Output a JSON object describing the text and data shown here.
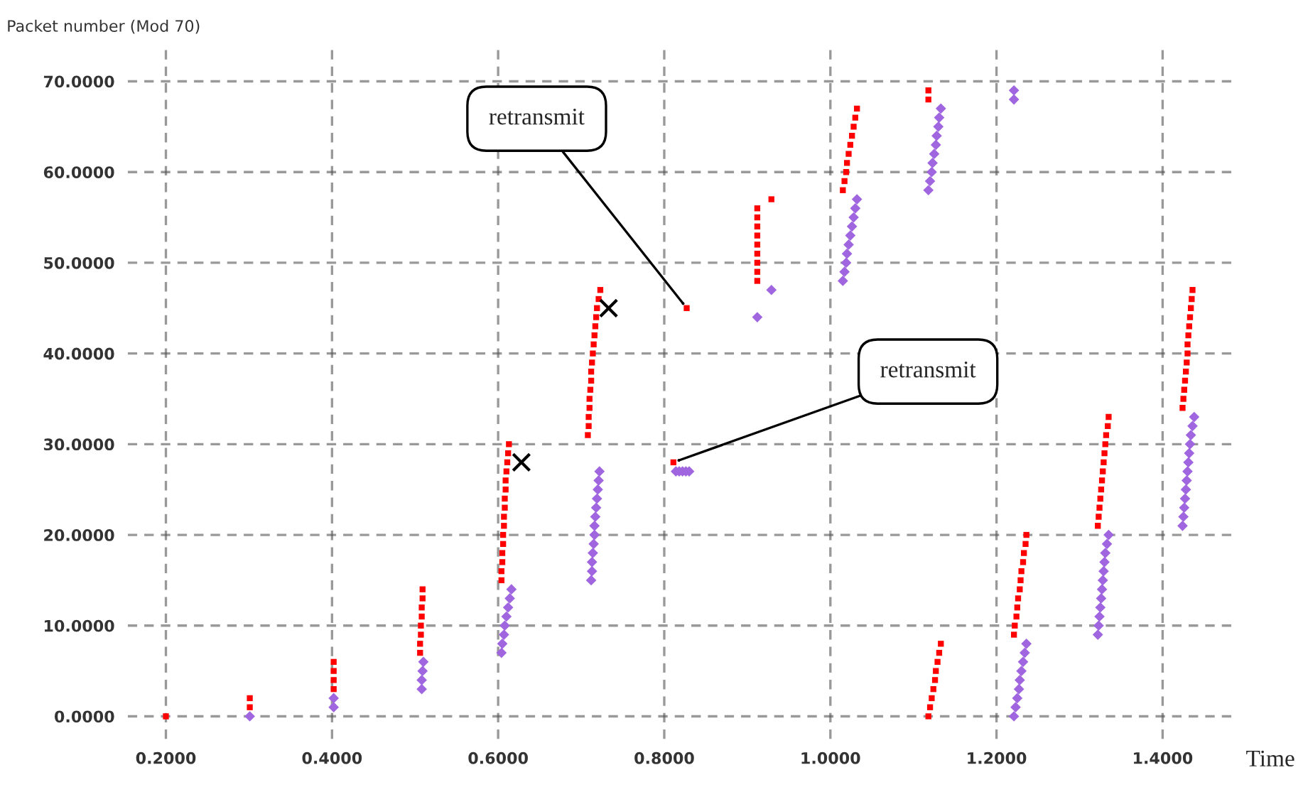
{
  "chart_data": {
    "type": "scatter",
    "xlabel": "Time",
    "ylabel": "Packet number (Mod 70)",
    "xlim": [
      0.154,
      1.489
    ],
    "ylim": [
      -2.5,
      73.5
    ],
    "xticks": [
      {
        "value": 0.2,
        "label": "0.2000"
      },
      {
        "value": 0.4,
        "label": "0.4000"
      },
      {
        "value": 0.6,
        "label": "0.6000"
      },
      {
        "value": 0.8,
        "label": "0.8000"
      },
      {
        "value": 1.0,
        "label": "1.0000"
      },
      {
        "value": 1.2,
        "label": "1.2000"
      },
      {
        "value": 1.4,
        "label": "1.4000"
      }
    ],
    "yticks": [
      {
        "value": 0,
        "label": "0.0000"
      },
      {
        "value": 10,
        "label": "10.0000"
      },
      {
        "value": 20,
        "label": "20.0000"
      },
      {
        "value": 30,
        "label": "30.0000"
      },
      {
        "value": 40,
        "label": "40.0000"
      },
      {
        "value": 50,
        "label": "50.0000"
      },
      {
        "value": 60,
        "label": "60.0000"
      },
      {
        "value": 70,
        "label": "70.0000"
      }
    ],
    "grid": true,
    "series": [
      {
        "color": "#ff0000",
        "marker": "square",
        "x": [
          0.2,
          0.301,
          0.301,
          0.402,
          0.402,
          0.402,
          0.402,
          0.506,
          0.506,
          0.507,
          0.507,
          0.508,
          0.508,
          0.509,
          0.509,
          0.604,
          0.604,
          0.605,
          0.605,
          0.606,
          0.606,
          0.607,
          0.607,
          0.608,
          0.608,
          0.609,
          0.609,
          0.61,
          0.611,
          0.612,
          0.613,
          0.708,
          0.709,
          0.709,
          0.71,
          0.71,
          0.711,
          0.712,
          0.712,
          0.713,
          0.714,
          0.715,
          0.716,
          0.717,
          0.718,
          0.719,
          0.721,
          0.723,
          0.811,
          0.827,
          0.912,
          0.912,
          0.912,
          0.912,
          0.912,
          0.912,
          0.912,
          0.912,
          0.912,
          0.929,
          1.015,
          1.017,
          1.019,
          1.02,
          1.022,
          1.024,
          1.026,
          1.028,
          1.03,
          1.032,
          1.118,
          1.118,
          1.118,
          1.12,
          1.122,
          1.124,
          1.126,
          1.127,
          1.129,
          1.131,
          1.133,
          1.221,
          1.222,
          1.224,
          1.225,
          1.226,
          1.228,
          1.229,
          1.23,
          1.232,
          1.233,
          1.235,
          1.236,
          1.322,
          1.323,
          1.324,
          1.325,
          1.326,
          1.327,
          1.328,
          1.329,
          1.33,
          1.331,
          1.332,
          1.334,
          1.335,
          1.424,
          1.425,
          1.426,
          1.427,
          1.428,
          1.429,
          1.43,
          1.43,
          1.431,
          1.432,
          1.433,
          1.434,
          1.435,
          1.436
        ],
        "values": [
          0,
          1,
          2,
          3,
          4,
          5,
          6,
          7,
          8,
          9,
          10,
          11,
          12,
          13,
          14,
          15,
          16,
          17,
          18,
          19,
          20,
          21,
          22,
          23,
          24,
          25,
          26,
          27,
          28,
          29,
          30,
          31,
          32,
          33,
          34,
          35,
          36,
          37,
          38,
          39,
          40,
          41,
          42,
          43,
          44,
          45,
          46,
          47,
          28,
          45,
          48,
          49,
          50,
          51,
          52,
          53,
          54,
          55,
          56,
          57,
          58,
          59,
          60,
          61,
          62,
          63,
          64,
          65,
          66,
          67,
          68,
          69,
          0,
          1,
          2,
          3,
          4,
          5,
          6,
          7,
          8,
          9,
          10,
          11,
          12,
          13,
          14,
          15,
          16,
          17,
          18,
          19,
          20,
          21,
          22,
          23,
          24,
          25,
          26,
          27,
          28,
          29,
          30,
          31,
          32,
          33,
          34,
          35,
          36,
          37,
          38,
          39,
          40,
          41,
          42,
          43,
          44,
          45,
          46,
          47
        ]
      },
      {
        "color": "#a066e0",
        "marker": "diamond",
        "x": [
          0.301,
          0.402,
          0.402,
          0.508,
          0.508,
          0.509,
          0.51,
          0.604,
          0.605,
          0.607,
          0.608,
          0.61,
          0.612,
          0.614,
          0.616,
          0.712,
          0.713,
          0.713,
          0.714,
          0.715,
          0.716,
          0.716,
          0.717,
          0.718,
          0.719,
          0.72,
          0.721,
          0.722,
          0.814,
          0.818,
          0.822,
          0.826,
          0.83,
          0.912,
          0.929,
          1.015,
          1.017,
          1.019,
          1.02,
          1.022,
          1.024,
          1.026,
          1.028,
          1.03,
          1.032,
          1.118,
          1.12,
          1.122,
          1.123,
          1.125,
          1.127,
          1.128,
          1.13,
          1.131,
          1.133,
          1.221,
          1.221,
          1.221,
          1.223,
          1.225,
          1.227,
          1.228,
          1.23,
          1.232,
          1.234,
          1.236,
          1.322,
          1.323,
          1.324,
          1.325,
          1.326,
          1.327,
          1.328,
          1.329,
          1.33,
          1.331,
          1.333,
          1.335,
          1.424,
          1.425,
          1.426,
          1.427,
          1.428,
          1.429,
          1.43,
          1.431,
          1.432,
          1.433,
          1.434,
          1.436,
          1.438
        ],
        "values": [
          0,
          1,
          2,
          3,
          4,
          5,
          6,
          7,
          8,
          9,
          10,
          11,
          12,
          13,
          14,
          15,
          16,
          17,
          18,
          19,
          20,
          21,
          22,
          23,
          24,
          25,
          26,
          27,
          27,
          27,
          27,
          27,
          27,
          44,
          47,
          48,
          49,
          50,
          51,
          52,
          53,
          54,
          55,
          56,
          57,
          58,
          59,
          60,
          61,
          62,
          63,
          64,
          65,
          66,
          67,
          68,
          69,
          0,
          1,
          2,
          3,
          4,
          5,
          6,
          7,
          8,
          9,
          10,
          11,
          12,
          13,
          14,
          15,
          16,
          17,
          18,
          19,
          20,
          21,
          22,
          23,
          24,
          25,
          26,
          27,
          28,
          29,
          30,
          31,
          32,
          33
        ]
      },
      {
        "color": "#000000",
        "marker": "cross",
        "x": [
          0.628,
          0.733
        ],
        "values": [
          28,
          45
        ]
      }
    ],
    "annotations": [
      {
        "text": "retransmit",
        "x": 0.827,
        "y": 45
      },
      {
        "text": "retransmit",
        "x": 0.811,
        "y": 28
      }
    ]
  }
}
